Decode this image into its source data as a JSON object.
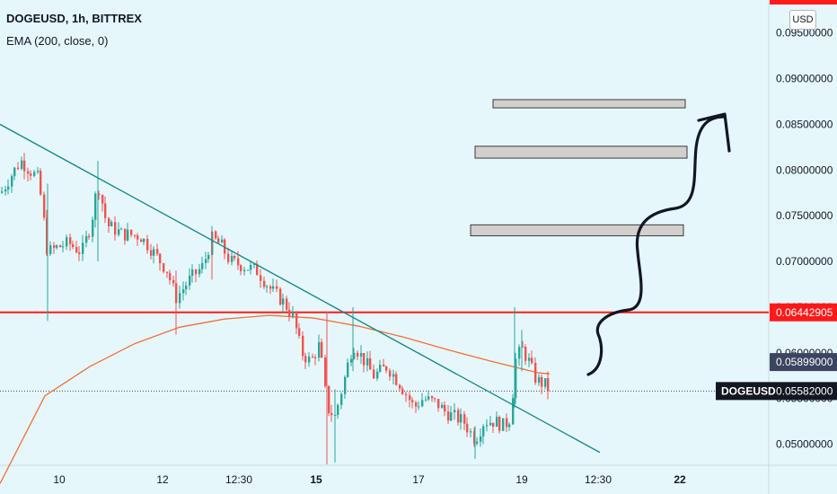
{
  "header": {
    "symbol": "DOGEUSD, 1h, BITTREX",
    "indicator": "EMA (200, close, 0)",
    "currency_button": "USD"
  },
  "colors": {
    "background": "#e6f7fb",
    "up_candle": "#26a69a",
    "down_candle": "#ef5350",
    "ema": "#f0703a",
    "trendline": "#1b8a8a",
    "resistance": "#ff1a1a",
    "zone_fill": "#d3cfcf",
    "last_price_bg": "#131722",
    "arrow": "#131722"
  },
  "chart_data": {
    "type": "candlestick",
    "symbol": "DOGEUSD",
    "timeframe": "1h",
    "exchange": "BITTREX",
    "y_axis": {
      "ticks": [
        "0.05000000",
        "0.05500000",
        "0.06000000",
        "0.06500000",
        "0.07000000",
        "0.07500000",
        "0.08000000",
        "0.08500000",
        "0.09000000",
        "0.09500000"
      ],
      "range": [
        0.0477,
        0.0986
      ],
      "position": "right"
    },
    "x_axis": {
      "ticks": [
        {
          "label": "10",
          "bold": false
        },
        {
          "label": "12",
          "bold": false
        },
        {
          "label": "12:30",
          "bold": false
        },
        {
          "label": "15",
          "bold": true
        },
        {
          "label": "17",
          "bold": false
        },
        {
          "label": "19",
          "bold": false
        },
        {
          "label": "12:30",
          "bold": false
        },
        {
          "label": "22",
          "bold": true
        }
      ]
    },
    "price_path": [
      [
        0,
        0.0775
      ],
      [
        12,
        0.0795
      ],
      [
        22,
        0.081
      ],
      [
        32,
        0.08
      ],
      [
        42,
        0.079
      ],
      [
        52,
        0.071
      ],
      [
        62,
        0.0715
      ],
      [
        75,
        0.072
      ],
      [
        90,
        0.071
      ],
      [
        100,
        0.074
      ],
      [
        108,
        0.0785
      ],
      [
        118,
        0.074
      ],
      [
        135,
        0.073
      ],
      [
        155,
        0.0728
      ],
      [
        170,
        0.071
      ],
      [
        185,
        0.069
      ],
      [
        195,
        0.066
      ],
      [
        210,
        0.068
      ],
      [
        225,
        0.0695
      ],
      [
        235,
        0.0725
      ],
      [
        245,
        0.0718
      ],
      [
        255,
        0.07
      ],
      [
        270,
        0.0695
      ],
      [
        285,
        0.069
      ],
      [
        300,
        0.067
      ],
      [
        315,
        0.0655
      ],
      [
        325,
        0.064
      ],
      [
        335,
        0.06
      ],
      [
        345,
        0.059
      ],
      [
        355,
        0.061
      ],
      [
        363,
        0.054
      ],
      [
        372,
        0.053
      ],
      [
        382,
        0.057
      ],
      [
        392,
        0.061
      ],
      [
        402,
        0.0595
      ],
      [
        415,
        0.0575
      ],
      [
        430,
        0.0585
      ],
      [
        445,
        0.0565
      ],
      [
        460,
        0.054
      ],
      [
        470,
        0.055
      ],
      [
        485,
        0.0545
      ],
      [
        495,
        0.0535
      ],
      [
        505,
        0.053
      ],
      [
        515,
        0.0525
      ],
      [
        528,
        0.0505
      ],
      [
        538,
        0.0525
      ],
      [
        550,
        0.0525
      ],
      [
        560,
        0.052
      ],
      [
        568,
        0.053
      ],
      [
        572,
        0.059
      ],
      [
        580,
        0.0605
      ],
      [
        588,
        0.059
      ],
      [
        596,
        0.057
      ],
      [
        606,
        0.0565
      ],
      [
        612,
        0.0558
      ]
    ],
    "wicks": [
      [
        52,
        0.0785,
        0.0635
      ],
      [
        108,
        0.081,
        0.07
      ],
      [
        195,
        0.069,
        0.062
      ],
      [
        235,
        0.0735,
        0.068
      ],
      [
        363,
        0.0645,
        0.0478
      ],
      [
        372,
        0.056,
        0.048
      ],
      [
        392,
        0.065,
        0.058
      ],
      [
        528,
        0.052,
        0.0484
      ],
      [
        572,
        0.065,
        0.054
      ],
      [
        580,
        0.0625,
        0.058
      ]
    ],
    "ema_200": [
      [
        0,
        0.0457
      ],
      [
        50,
        0.0553
      ],
      [
        100,
        0.0585
      ],
      [
        150,
        0.061
      ],
      [
        200,
        0.0628
      ],
      [
        250,
        0.0637
      ],
      [
        300,
        0.0641
      ],
      [
        350,
        0.0638
      ],
      [
        400,
        0.0629
      ],
      [
        450,
        0.0617
      ],
      [
        500,
        0.0603
      ],
      [
        550,
        0.059
      ],
      [
        600,
        0.0578
      ],
      [
        612,
        0.0577
      ]
    ],
    "trendline": [
      [
        0,
        0.085
      ],
      [
        668,
        0.0491
      ]
    ],
    "horizontal_line": {
      "value": 0.06442905,
      "label": "0.06442905"
    },
    "dotted_line": {
      "value": 0.05582
    },
    "zones": [
      {
        "x": [
          549,
          763
        ],
        "y": [
          0.0868,
          0.0877
        ]
      },
      {
        "x": [
          529,
          765
        ],
        "y": [
          0.0813,
          0.0826
        ]
      },
      {
        "x": [
          524,
          761
        ],
        "y": [
          0.0728,
          0.074
        ]
      }
    ],
    "price_labels": [
      {
        "text": "0.06442905",
        "value": 0.06442905,
        "style": "red"
      },
      {
        "text": "0.05899000",
        "value": 0.05899,
        "style": "slate"
      },
      {
        "text": "0.05582000",
        "value": 0.05582,
        "style": "dark",
        "prefix": "DOGEUSD"
      }
    ]
  }
}
